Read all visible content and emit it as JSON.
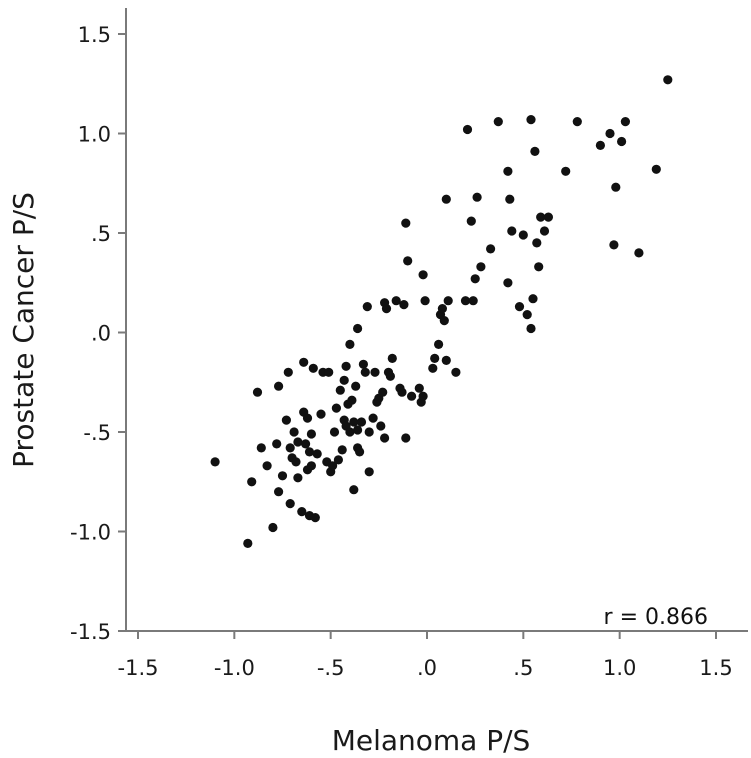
{
  "chart_data": {
    "type": "scatter",
    "xlabel": "Melanoma P/S",
    "ylabel": "Prostate Cancer  P/S",
    "xlim": [
      -1.5,
      1.5
    ],
    "ylim": [
      -1.5,
      1.5
    ],
    "x_ticks": [
      {
        "value": -1.5,
        "label": "-1.5"
      },
      {
        "value": -1.0,
        "label": "-1.0"
      },
      {
        "value": -0.5,
        "label": "-.5"
      },
      {
        "value": 0.0,
        "label": ".0"
      },
      {
        "value": 0.5,
        "label": ".5"
      },
      {
        "value": 1.0,
        "label": "1.0"
      },
      {
        "value": 1.5,
        "label": "1.5"
      }
    ],
    "y_ticks": [
      {
        "value": -1.5,
        "label": "-1.5"
      },
      {
        "value": -1.0,
        "label": "-1.0"
      },
      {
        "value": -0.5,
        "label": "-.5"
      },
      {
        "value": 0.0,
        "label": ".0"
      },
      {
        "value": 0.5,
        "label": ".5"
      },
      {
        "value": 1.0,
        "label": "1.0"
      },
      {
        "value": 1.5,
        "label": "1.5"
      }
    ],
    "grid": false,
    "annotation": "r = 0.866",
    "marker_color": "#111111",
    "axis_color": "#7a7a7a",
    "points": [
      {
        "x": -1.1,
        "y": -0.65
      },
      {
        "x": -0.93,
        "y": -1.06
      },
      {
        "x": -0.91,
        "y": -0.75
      },
      {
        "x": -0.88,
        "y": -0.3
      },
      {
        "x": -0.86,
        "y": -0.58
      },
      {
        "x": -0.83,
        "y": -0.67
      },
      {
        "x": -0.8,
        "y": -0.98
      },
      {
        "x": -0.78,
        "y": -0.56
      },
      {
        "x": -0.77,
        "y": -0.27
      },
      {
        "x": -0.77,
        "y": -0.8
      },
      {
        "x": -0.75,
        "y": -0.72
      },
      {
        "x": -0.73,
        "y": -0.44
      },
      {
        "x": -0.72,
        "y": -0.2
      },
      {
        "x": -0.71,
        "y": -0.58
      },
      {
        "x": -0.71,
        "y": -0.86
      },
      {
        "x": -0.7,
        "y": -0.63
      },
      {
        "x": -0.69,
        "y": -0.5
      },
      {
        "x": -0.68,
        "y": -0.65
      },
      {
        "x": -0.67,
        "y": -0.55
      },
      {
        "x": -0.67,
        "y": -0.73
      },
      {
        "x": -0.65,
        "y": -0.9
      },
      {
        "x": -0.64,
        "y": -0.4
      },
      {
        "x": -0.64,
        "y": -0.15
      },
      {
        "x": -0.63,
        "y": -0.56
      },
      {
        "x": -0.62,
        "y": -0.69
      },
      {
        "x": -0.62,
        "y": -0.43
      },
      {
        "x": -0.61,
        "y": -0.6
      },
      {
        "x": -0.61,
        "y": -0.92
      },
      {
        "x": -0.6,
        "y": -0.51
      },
      {
        "x": -0.6,
        "y": -0.67
      },
      {
        "x": -0.59,
        "y": -0.18
      },
      {
        "x": -0.58,
        "y": -0.93
      },
      {
        "x": -0.57,
        "y": -0.61
      },
      {
        "x": -0.55,
        "y": -0.41
      },
      {
        "x": -0.54,
        "y": -0.2
      },
      {
        "x": -0.52,
        "y": -0.65
      },
      {
        "x": -0.51,
        "y": -0.2
      },
      {
        "x": -0.5,
        "y": -0.7
      },
      {
        "x": -0.49,
        "y": -0.67
      },
      {
        "x": -0.48,
        "y": -0.5
      },
      {
        "x": -0.47,
        "y": -0.38
      },
      {
        "x": -0.46,
        "y": -0.64
      },
      {
        "x": -0.45,
        "y": -0.29
      },
      {
        "x": -0.44,
        "y": -0.59
      },
      {
        "x": -0.43,
        "y": -0.24
      },
      {
        "x": -0.43,
        "y": -0.44
      },
      {
        "x": -0.42,
        "y": -0.17
      },
      {
        "x": -0.42,
        "y": -0.47
      },
      {
        "x": -0.41,
        "y": -0.36
      },
      {
        "x": -0.4,
        "y": -0.5
      },
      {
        "x": -0.4,
        "y": -0.06
      },
      {
        "x": -0.39,
        "y": -0.34
      },
      {
        "x": -0.38,
        "y": -0.45
      },
      {
        "x": -0.38,
        "y": -0.79
      },
      {
        "x": -0.37,
        "y": -0.27
      },
      {
        "x": -0.36,
        "y": -0.58
      },
      {
        "x": -0.36,
        "y": -0.49
      },
      {
        "x": -0.36,
        "y": 0.02
      },
      {
        "x": -0.35,
        "y": -0.6
      },
      {
        "x": -0.34,
        "y": -0.45
      },
      {
        "x": -0.33,
        "y": -0.16
      },
      {
        "x": -0.32,
        "y": -0.2
      },
      {
        "x": -0.31,
        "y": 0.13
      },
      {
        "x": -0.3,
        "y": -0.7
      },
      {
        "x": -0.3,
        "y": -0.5
      },
      {
        "x": -0.28,
        "y": -0.43
      },
      {
        "x": -0.27,
        "y": -0.2
      },
      {
        "x": -0.26,
        "y": -0.35
      },
      {
        "x": -0.25,
        "y": -0.33
      },
      {
        "x": -0.24,
        "y": -0.47
      },
      {
        "x": -0.23,
        "y": -0.3
      },
      {
        "x": -0.22,
        "y": -0.53
      },
      {
        "x": -0.22,
        "y": 0.15
      },
      {
        "x": -0.21,
        "y": 0.12
      },
      {
        "x": -0.2,
        "y": -0.2
      },
      {
        "x": -0.19,
        "y": -0.22
      },
      {
        "x": -0.18,
        "y": -0.13
      },
      {
        "x": -0.16,
        "y": 0.16
      },
      {
        "x": -0.14,
        "y": -0.28
      },
      {
        "x": -0.13,
        "y": -0.3
      },
      {
        "x": -0.12,
        "y": 0.14
      },
      {
        "x": -0.11,
        "y": -0.53
      },
      {
        "x": -0.11,
        "y": 0.55
      },
      {
        "x": -0.1,
        "y": 0.36
      },
      {
        "x": -0.08,
        "y": -0.32
      },
      {
        "x": -0.04,
        "y": -0.28
      },
      {
        "x": -0.03,
        "y": -0.35
      },
      {
        "x": -0.02,
        "y": -0.32
      },
      {
        "x": -0.02,
        "y": 0.29
      },
      {
        "x": -0.01,
        "y": 0.16
      },
      {
        "x": 0.03,
        "y": -0.18
      },
      {
        "x": 0.04,
        "y": -0.13
      },
      {
        "x": 0.06,
        "y": -0.06
      },
      {
        "x": 0.07,
        "y": 0.09
      },
      {
        "x": 0.08,
        "y": 0.12
      },
      {
        "x": 0.09,
        "y": 0.06
      },
      {
        "x": 0.1,
        "y": 0.67
      },
      {
        "x": 0.1,
        "y": -0.14
      },
      {
        "x": 0.11,
        "y": 0.16
      },
      {
        "x": 0.15,
        "y": -0.2
      },
      {
        "x": 0.2,
        "y": 0.16
      },
      {
        "x": 0.21,
        "y": 1.02
      },
      {
        "x": 0.23,
        "y": 0.56
      },
      {
        "x": 0.24,
        "y": 0.16
      },
      {
        "x": 0.25,
        "y": 0.27
      },
      {
        "x": 0.26,
        "y": 0.68
      },
      {
        "x": 0.28,
        "y": 0.33
      },
      {
        "x": 0.33,
        "y": 0.42
      },
      {
        "x": 0.37,
        "y": 1.06
      },
      {
        "x": 0.42,
        "y": 0.81
      },
      {
        "x": 0.42,
        "y": 0.25
      },
      {
        "x": 0.43,
        "y": 0.67
      },
      {
        "x": 0.44,
        "y": 0.51
      },
      {
        "x": 0.48,
        "y": 0.13
      },
      {
        "x": 0.5,
        "y": 0.49
      },
      {
        "x": 0.52,
        "y": 0.09
      },
      {
        "x": 0.54,
        "y": 1.07
      },
      {
        "x": 0.54,
        "y": 0.02
      },
      {
        "x": 0.55,
        "y": 0.17
      },
      {
        "x": 0.56,
        "y": 0.91
      },
      {
        "x": 0.57,
        "y": 0.45
      },
      {
        "x": 0.58,
        "y": 0.33
      },
      {
        "x": 0.59,
        "y": 0.58
      },
      {
        "x": 0.61,
        "y": 0.51
      },
      {
        "x": 0.63,
        "y": 0.58
      },
      {
        "x": 0.72,
        "y": 0.81
      },
      {
        "x": 0.78,
        "y": 1.06
      },
      {
        "x": 0.9,
        "y": 0.94
      },
      {
        "x": 0.95,
        "y": 1.0
      },
      {
        "x": 0.97,
        "y": 0.44
      },
      {
        "x": 0.98,
        "y": 0.73
      },
      {
        "x": 1.01,
        "y": 0.96
      },
      {
        "x": 1.03,
        "y": 1.06
      },
      {
        "x": 1.1,
        "y": 0.4
      },
      {
        "x": 1.19,
        "y": 0.82
      },
      {
        "x": 1.25,
        "y": 1.27
      }
    ]
  }
}
